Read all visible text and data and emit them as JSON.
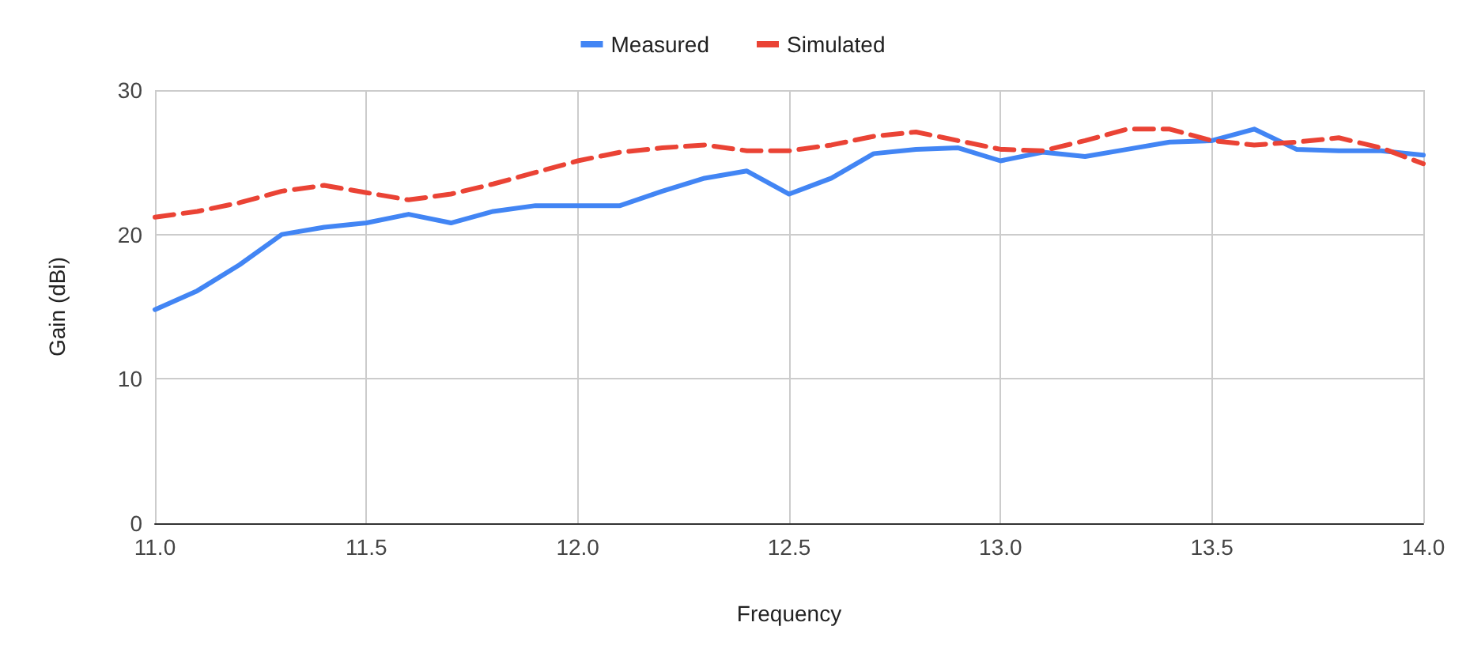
{
  "chart_data": {
    "type": "line",
    "xlabel": "Frequency",
    "ylabel": "Gain (dBi)",
    "x": [
      11.0,
      11.1,
      11.2,
      11.3,
      11.4,
      11.5,
      11.6,
      11.7,
      11.8,
      11.9,
      12.0,
      12.1,
      12.2,
      12.3,
      12.4,
      12.5,
      12.6,
      12.7,
      12.8,
      12.9,
      13.0,
      13.1,
      13.2,
      13.3,
      13.4,
      13.5,
      13.6,
      13.7,
      13.8,
      13.9,
      14.0
    ],
    "series": [
      {
        "name": "Measured",
        "color": "#4285f4",
        "line_style": "solid",
        "values": [
          14.8,
          16.1,
          17.9,
          20.0,
          20.5,
          20.8,
          21.4,
          20.8,
          21.6,
          22.0,
          22.0,
          22.0,
          23.0,
          23.9,
          24.4,
          22.8,
          23.9,
          25.6,
          25.9,
          26.0,
          25.1,
          25.7,
          25.4,
          25.9,
          26.4,
          26.5,
          27.3,
          25.9,
          25.8,
          25.8,
          25.5
        ]
      },
      {
        "name": "Simulated",
        "color": "#ea4335",
        "line_style": "dashed",
        "values": [
          21.2,
          21.6,
          22.2,
          23.0,
          23.4,
          22.9,
          22.4,
          22.8,
          23.5,
          24.3,
          25.1,
          25.7,
          26.0,
          26.2,
          25.8,
          25.8,
          26.2,
          26.8,
          27.1,
          26.5,
          25.9,
          25.8,
          26.5,
          27.3,
          27.3,
          26.5,
          26.2,
          26.4,
          26.7,
          26.0,
          24.9
        ]
      }
    ],
    "xlim": [
      11.0,
      14.0
    ],
    "xticks": [
      {
        "value": 11,
        "label": "11.0"
      },
      11.5,
      {
        "value": 12,
        "label": "12.0"
      },
      12.5,
      {
        "value": 13,
        "label": "13.0"
      },
      13.5,
      {
        "value": 14,
        "label": "14.0"
      }
    ],
    "ylim": [
      0,
      30
    ],
    "yticks": [
      0,
      10,
      20,
      30
    ],
    "grid": true,
    "legend": "top",
    "marker": "none"
  }
}
